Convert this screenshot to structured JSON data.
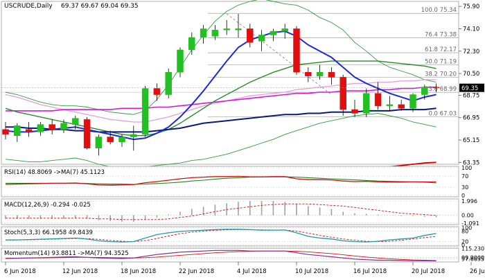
{
  "chart_data": {
    "type": "candlestick",
    "header": {
      "symbol": "USCRUDE,Daily",
      "ohlc": "69.37 69.67 69.04 69.35"
    },
    "current_price": "69.35",
    "x_labels": [
      "6 Jun 2018",
      "12 Jun 2018",
      "18 Jun 2018",
      "22 Jun 2018",
      "4 Jul 2018",
      "10 Jul 2018",
      "16 Jul 2018",
      "20 Jul 2018",
      "26 Jul 2018"
    ],
    "x_label_index": [
      0,
      5,
      10,
      15,
      20,
      25,
      30,
      35,
      40
    ],
    "y_ticks": [
      {
        "label": "75.90",
        "v": 75.9
      },
      {
        "label": "74.10",
        "v": 74.1
      },
      {
        "label": "72.30",
        "v": 72.3
      },
      {
        "label": "70.50",
        "v": 70.5
      },
      {
        "label": "68.75",
        "v": 68.75
      },
      {
        "label": "66.95",
        "v": 66.95
      },
      {
        "label": "65.15",
        "v": 65.15
      },
      {
        "label": "63.35",
        "v": 63.35
      }
    ],
    "ylim": [
      63.2,
      76.3
    ],
    "fib_levels": [
      {
        "label": "100.0 75.34",
        "v": 75.34
      },
      {
        "label": "76.4 73.38",
        "v": 73.38
      },
      {
        "label": "61.8 72.17",
        "v": 72.17
      },
      {
        "label": "50.0 71.19",
        "v": 71.19
      },
      {
        "label": "38.2 70.20",
        "v": 70.2
      },
      {
        "label": "23.6 68.99",
        "v": 68.99
      },
      {
        "label": "0.0 67.03",
        "v": 67.03
      }
    ],
    "candles": [
      {
        "o": 66.0,
        "h": 66.6,
        "l": 65.2,
        "c": 65.6
      },
      {
        "o": 65.5,
        "h": 66.5,
        "l": 65.0,
        "c": 66.3
      },
      {
        "o": 66.0,
        "h": 66.6,
        "l": 65.4,
        "c": 65.8
      },
      {
        "o": 65.8,
        "h": 66.6,
        "l": 65.5,
        "c": 66.4
      },
      {
        "o": 66.4,
        "h": 66.8,
        "l": 65.6,
        "c": 66.0
      },
      {
        "o": 66.0,
        "h": 66.8,
        "l": 65.7,
        "c": 66.5
      },
      {
        "o": 66.4,
        "h": 67.1,
        "l": 66.0,
        "c": 66.9
      },
      {
        "o": 66.8,
        "h": 67.0,
        "l": 64.4,
        "c": 64.5
      },
      {
        "o": 64.5,
        "h": 65.6,
        "l": 63.9,
        "c": 65.4
      },
      {
        "o": 65.4,
        "h": 65.9,
        "l": 64.8,
        "c": 65.0
      },
      {
        "o": 65.0,
        "h": 65.6,
        "l": 64.6,
        "c": 65.4
      },
      {
        "o": 65.4,
        "h": 66.3,
        "l": 64.3,
        "c": 65.6
      },
      {
        "o": 65.6,
        "h": 69.5,
        "l": 65.4,
        "c": 69.3
      },
      {
        "o": 69.3,
        "h": 69.7,
        "l": 68.3,
        "c": 68.8
      },
      {
        "o": 68.8,
        "h": 70.9,
        "l": 68.5,
        "c": 70.6
      },
      {
        "o": 70.6,
        "h": 72.6,
        "l": 70.2,
        "c": 72.4
      },
      {
        "o": 72.4,
        "h": 73.8,
        "l": 72.0,
        "c": 73.4
      },
      {
        "o": 73.4,
        "h": 74.4,
        "l": 72.9,
        "c": 74.1
      },
      {
        "o": 73.5,
        "h": 74.4,
        "l": 73.2,
        "c": 74.0
      },
      {
        "o": 74.0,
        "h": 74.8,
        "l": 73.6,
        "c": 74.1
      },
      {
        "o": 74.0,
        "h": 75.3,
        "l": 73.4,
        "c": 74.1
      },
      {
        "o": 74.1,
        "h": 74.5,
        "l": 72.6,
        "c": 73.0
      },
      {
        "o": 73.1,
        "h": 74.0,
        "l": 72.3,
        "c": 73.6
      },
      {
        "o": 73.6,
        "h": 74.1,
        "l": 73.1,
        "c": 73.9
      },
      {
        "o": 73.9,
        "h": 74.5,
        "l": 73.3,
        "c": 74.1
      },
      {
        "o": 74.1,
        "h": 74.3,
        "l": 70.4,
        "c": 70.6
      },
      {
        "o": 70.6,
        "h": 71.0,
        "l": 69.8,
        "c": 70.3
      },
      {
        "o": 70.3,
        "h": 71.2,
        "l": 70.0,
        "c": 70.6
      },
      {
        "o": 70.6,
        "h": 71.0,
        "l": 69.6,
        "c": 70.2
      },
      {
        "o": 70.2,
        "h": 70.4,
        "l": 67.1,
        "c": 67.6
      },
      {
        "o": 67.6,
        "h": 68.4,
        "l": 67.0,
        "c": 67.3
      },
      {
        "o": 67.3,
        "h": 69.3,
        "l": 67.0,
        "c": 68.9
      },
      {
        "o": 68.9,
        "h": 69.8,
        "l": 67.6,
        "c": 67.9
      },
      {
        "o": 67.9,
        "h": 68.7,
        "l": 67.5,
        "c": 68.0
      },
      {
        "o": 68.0,
        "h": 68.4,
        "l": 67.5,
        "c": 67.7
      },
      {
        "o": 67.7,
        "h": 68.9,
        "l": 67.4,
        "c": 68.8
      },
      {
        "o": 68.8,
        "h": 69.6,
        "l": 68.4,
        "c": 69.4
      },
      {
        "o": 69.4,
        "h": 69.7,
        "l": 69.0,
        "c": 69.35
      }
    ],
    "ma_blue_fast": [
      65.9,
      65.8,
      65.8,
      65.9,
      66.0,
      66.1,
      66.2,
      66.0,
      65.8,
      65.6,
      65.4,
      65.2,
      65.3,
      65.7,
      66.2,
      67.0,
      68.0,
      69.1,
      70.3,
      71.5,
      72.6,
      73.2,
      73.5,
      73.8,
      73.9,
      73.5,
      72.8,
      72.3,
      71.8,
      71.0,
      70.2,
      69.7,
      69.3,
      68.9,
      68.6,
      68.3,
      68.6,
      68.8
    ],
    "ma_green_mid": [
      67.7,
      67.4,
      67.2,
      67.0,
      66.8,
      66.6,
      66.4,
      66.2,
      66.0,
      65.8,
      65.6,
      65.5,
      65.5,
      65.7,
      66.0,
      66.5,
      67.1,
      67.7,
      68.3,
      68.8,
      69.3,
      69.8,
      70.2,
      70.6,
      70.9,
      71.2,
      71.3,
      71.4,
      71.5,
      71.5,
      71.5,
      71.5,
      71.5,
      71.4,
      71.3,
      71.2,
      71.1,
      70.9
    ],
    "ma_navy_slow": [
      66.2,
      66.2,
      66.1,
      66.1,
      66.0,
      66.0,
      65.9,
      65.9,
      65.8,
      65.8,
      65.8,
      65.8,
      65.8,
      65.9,
      66.0,
      66.1,
      66.3,
      66.5,
      66.6,
      66.7,
      66.8,
      66.9,
      67.0,
      67.1,
      67.2,
      67.2,
      67.3,
      67.3,
      67.4,
      67.4,
      67.4,
      67.5,
      67.5,
      67.5,
      67.6,
      67.6,
      67.6,
      67.7
    ],
    "ma_magenta": [
      67.5,
      67.5,
      67.5,
      67.5,
      67.5,
      67.6,
      67.6,
      67.6,
      67.6,
      67.6,
      67.7,
      67.7,
      67.7,
      67.8,
      67.8,
      67.9,
      68.0,
      68.1,
      68.2,
      68.3,
      68.4,
      68.5,
      68.6,
      68.7,
      68.8,
      68.9,
      68.9,
      69.0,
      69.0,
      69.1,
      69.1,
      69.1,
      69.2,
      69.2,
      69.3,
      69.3,
      69.4,
      69.4
    ],
    "ma_pink": [
      68.8,
      68.6,
      68.3,
      68.0,
      67.8,
      67.6,
      67.4,
      67.2,
      67.0,
      66.8,
      66.7,
      66.6,
      66.6,
      66.8,
      67.0,
      67.3,
      67.6,
      67.9,
      68.1,
      68.3,
      68.5,
      68.7,
      68.8,
      68.9,
      69.0,
      69.2,
      69.3,
      69.4,
      69.5,
      69.6,
      69.7,
      69.7,
      69.8,
      69.8,
      69.9,
      69.9,
      70.0,
      70.0
    ],
    "bb_upper": [
      69.0,
      68.8,
      68.5,
      68.2,
      68.0,
      67.9,
      67.9,
      67.8,
      67.6,
      67.4,
      67.3,
      67.2,
      67.5,
      68.4,
      69.6,
      71.0,
      72.4,
      73.6,
      74.7,
      75.5,
      76.0,
      76.3,
      76.5,
      76.3,
      76.1,
      76.0,
      75.6,
      75.0,
      74.6,
      74.0,
      73.0,
      72.3,
      71.5,
      71.0,
      70.7,
      70.4,
      70.0,
      69.8
    ],
    "bb_lower": [
      63.6,
      63.5,
      63.4,
      63.4,
      63.5,
      63.6,
      63.7,
      63.5,
      63.2,
      63.0,
      62.9,
      62.8,
      63.0,
      63.1,
      63.2,
      63.3,
      63.5,
      63.6,
      63.8,
      64.0,
      64.3,
      64.6,
      64.9,
      65.2,
      65.6,
      65.9,
      66.2,
      66.5,
      66.7,
      66.9,
      67.1,
      67.2,
      67.3,
      67.1,
      66.9,
      66.6,
      66.4,
      66.2
    ],
    "bb_lower_tail": [
      62.9,
      63.0,
      63.1,
      63.2,
      63.3,
      63.35
    ],
    "trend_dashed": [
      {
        "i": 19,
        "v": 75.3
      },
      {
        "i": 28,
        "v": 68.8
      }
    ],
    "rsi": {
      "label": "RSI(14) 48.8069 ->MA(7) 45.1123",
      "levels": [
        {
          "label": "100",
          "v": 100
        },
        {
          "label": "70",
          "v": 70
        },
        {
          "label": "30",
          "v": 30
        },
        {
          "label": "0",
          "v": 0
        }
      ],
      "values": [
        40,
        41,
        42,
        43,
        44,
        44,
        45,
        42,
        38,
        37,
        38,
        39,
        46,
        50,
        55,
        60,
        64,
        66,
        68,
        68,
        69,
        67,
        67,
        68,
        68,
        60,
        57,
        57,
        56,
        52,
        50,
        51,
        49,
        48,
        48,
        49,
        49,
        48.8
      ],
      "ma": [
        44,
        44,
        44,
        44,
        44,
        44,
        44,
        43,
        42,
        41,
        41,
        40,
        41,
        43,
        45,
        48,
        52,
        55,
        59,
        62,
        64,
        66,
        67,
        67,
        67,
        66,
        64,
        62,
        60,
        58,
        56,
        54,
        52,
        51,
        50,
        49,
        48,
        45.1
      ]
    },
    "macd": {
      "label": "MACD(12,26,9) -0.294 -0.025",
      "levels": [
        {
          "label": "1.996",
          "v": 1.996
        },
        {
          "label": "0.00",
          "v": 0
        },
        {
          "label": "-1.091",
          "v": -1.091
        }
      ],
      "hist": [
        -0.5,
        -0.5,
        -0.5,
        -0.5,
        -0.5,
        -0.5,
        -0.4,
        -0.5,
        -0.7,
        -0.8,
        -0.9,
        -0.9,
        -0.6,
        -0.3,
        0.1,
        0.5,
        0.9,
        1.2,
        1.5,
        1.7,
        1.9,
        2.0,
        2.0,
        2.0,
        1.9,
        1.6,
        1.3,
        1.1,
        0.9,
        0.5,
        0.3,
        0.2,
        0.1,
        0.0,
        -0.1,
        -0.1,
        -0.2,
        -0.294
      ],
      "signal": [
        -0.4,
        -0.4,
        -0.4,
        -0.4,
        -0.4,
        -0.4,
        -0.4,
        -0.4,
        -0.5,
        -0.5,
        -0.6,
        -0.6,
        -0.6,
        -0.6,
        -0.5,
        -0.3,
        -0.1,
        0.2,
        0.5,
        0.8,
        1.0,
        1.2,
        1.4,
        1.5,
        1.6,
        1.6,
        1.6,
        1.5,
        1.4,
        1.3,
        1.1,
        0.9,
        0.7,
        0.5,
        0.3,
        0.2,
        0.1,
        -0.025
      ]
    },
    "stoch": {
      "label": "Stoch(5,3,3) 66.1958 49.8439",
      "levels": [
        {
          "label": "100",
          "v": 100
        },
        {
          "label": "80",
          "v": 80
        },
        {
          "label": "20",
          "v": 20
        },
        {
          "label": "0",
          "v": 0
        }
      ],
      "k": [
        30,
        30,
        32,
        34,
        36,
        38,
        40,
        35,
        25,
        20,
        18,
        20,
        40,
        60,
        70,
        78,
        82,
        85,
        88,
        90,
        90,
        88,
        85,
        85,
        86,
        70,
        50,
        40,
        35,
        25,
        20,
        18,
        22,
        30,
        35,
        40,
        55,
        66.2
      ],
      "d": [
        28,
        29,
        30,
        32,
        34,
        36,
        38,
        37,
        33,
        27,
        22,
        20,
        26,
        38,
        52,
        65,
        74,
        80,
        84,
        87,
        88,
        88,
        87,
        86,
        85,
        80,
        68,
        55,
        45,
        35,
        28,
        22,
        20,
        22,
        28,
        35,
        43,
        49.8
      ]
    },
    "momentum": {
      "label": "Momentum(14) 93.8811 ->MA(7) 94.3525",
      "levels": [
        {
          "label": "115.2307",
          "v": 115.2307
        },
        {
          "label": "99.9000",
          "v": 99.9
        },
        {
          "label": "97.6635",
          "v": 97.6635
        }
      ],
      "values": [
        98,
        98.5,
        99,
        99.5,
        100,
        100.5,
        101,
        100,
        99,
        98.5,
        98,
        99,
        102,
        105,
        107,
        109,
        110,
        111,
        112,
        112,
        112,
        111,
        111,
        111,
        111,
        108,
        105,
        103,
        101,
        99,
        97,
        96,
        95,
        95,
        94.5,
        94,
        94,
        93.9
      ],
      "ma": [
        98.5,
        98.6,
        98.8,
        99,
        99.3,
        99.6,
        100,
        100,
        99.8,
        99.5,
        99.2,
        99,
        99.5,
        100.5,
        102,
        103.5,
        105,
        106.5,
        108,
        109,
        110,
        110.5,
        111,
        111,
        111,
        110.5,
        109.5,
        108,
        106.5,
        104.5,
        102.5,
        100.5,
        99,
        97.5,
        96.5,
        95.5,
        95,
        94.4
      ]
    }
  }
}
